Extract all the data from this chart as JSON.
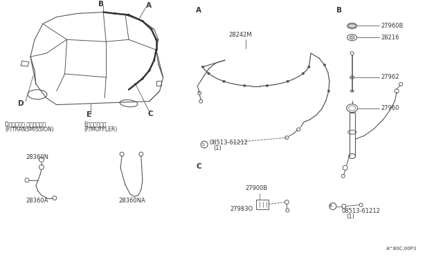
{
  "bg_color": "#ffffff",
  "diagram_code": "A^80C.00P3",
  "lc": "#555555",
  "tc": "#333333",
  "part_labels": {
    "A_cable": "28242M",
    "A_bolt": "08513-61212",
    "A_bolt_qty": "(1)",
    "B_top1": "27960B",
    "B_top2": "28216",
    "B_mid": "27962",
    "B_bot1": "27960",
    "B_bolt": "08513-61212",
    "B_bolt_qty": "(1)",
    "C_top": "27900B",
    "C_bot": "27983O",
    "D_top": "28360N",
    "D_bot": "28360A",
    "D_label1": "D（トランス ミッション）",
    "D_label2": "(F/TRANSMISSION)",
    "E_top": "28360NA",
    "E_label1": "E（マフラー）",
    "E_label2": "(F/MUFFLER)"
  },
  "fs_small": 5.5,
  "fs_part": 6,
  "fs_sec": 7.5
}
